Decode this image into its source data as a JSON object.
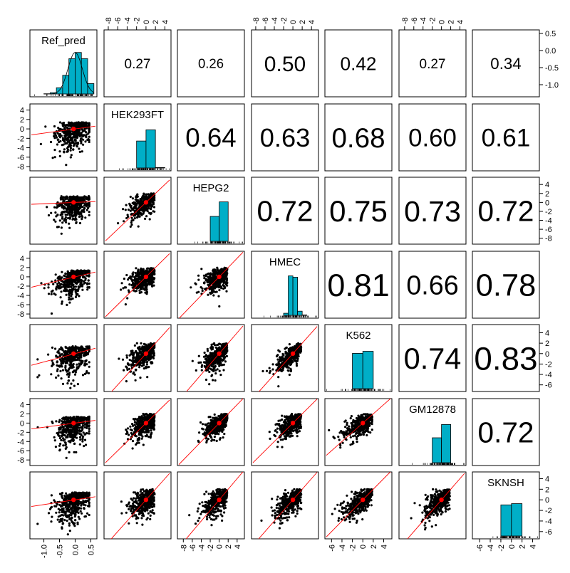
{
  "chart_data": {
    "type": "pairs",
    "variables": [
      "Ref_pred",
      "HEK293FT",
      "HEPG2",
      "HMEC",
      "K562",
      "GM12878",
      "SKNSH"
    ],
    "correlation_matrix": [
      [
        null,
        0.27,
        0.26,
        0.5,
        0.42,
        0.27,
        0.34
      ],
      [
        0.27,
        null,
        0.64,
        0.63,
        0.68,
        0.6,
        0.61
      ],
      [
        0.26,
        0.64,
        null,
        0.72,
        0.75,
        0.73,
        0.72
      ],
      [
        0.5,
        0.63,
        0.72,
        null,
        0.81,
        0.66,
        0.78
      ],
      [
        0.42,
        0.68,
        0.75,
        0.81,
        null,
        0.74,
        0.83
      ],
      [
        0.27,
        0.6,
        0.73,
        0.66,
        0.74,
        null,
        0.72
      ],
      [
        0.34,
        0.61,
        0.72,
        0.78,
        0.83,
        0.72,
        null
      ]
    ],
    "ranges": {
      "Ref_pred": [
        -1.4,
        0.65
      ],
      "HEK293FT": [
        -8.6,
        5.0
      ],
      "HEPG2": [
        -9.0,
        5.3
      ],
      "HMEC": [
        -8.6,
        5.2
      ],
      "K562": [
        -7.0,
        5.3
      ],
      "GM12878": [
        -8.9,
        5.0
      ],
      "SKNSH": [
        -7.1,
        5.0
      ]
    },
    "ticks": {
      "Ref_pred": [
        "-1.0",
        "-0.5",
        "0.0",
        "0.5"
      ],
      "HEK293FT": [
        "-8",
        "-6",
        "-4",
        "-2",
        "0",
        "2",
        "4"
      ],
      "HEPG2": [
        "-8",
        "-6",
        "-4",
        "-2",
        "0",
        "2",
        "4"
      ],
      "HMEC": [
        "-8",
        "-6",
        "-4",
        "-2",
        "0",
        "2",
        "4"
      ],
      "K562": [
        "-6",
        "-4",
        "-2",
        "0",
        "2",
        "4"
      ],
      "GM12878": [
        "-8",
        "-6",
        "-4",
        "-2",
        "0",
        "2",
        "4"
      ],
      "SKNSH": [
        "-6",
        "-4",
        "-2",
        "0",
        "2",
        "4"
      ]
    },
    "means": {
      "Ref_pred": -0.05,
      "HEK293FT": 0.0,
      "HEPG2": 0.0,
      "HMEC": 0.0,
      "K562": 0.0,
      "GM12878": 0.0,
      "SKNSH": 0.0
    },
    "histograms": {
      "Ref_pred": {
        "bins": [
          -1.0,
          -0.8,
          -0.6,
          -0.4,
          -0.2,
          0.0,
          0.2,
          0.4,
          0.6
        ],
        "heights": [
          0.005,
          0.03,
          0.15,
          0.45,
          0.85,
          1.0,
          0.85,
          0.25
        ]
      },
      "HEK293FT": {
        "bins": [
          -2,
          0,
          2,
          4
        ],
        "heights": [
          0.65,
          0.92,
          0.01
        ]
      },
      "HEPG2": {
        "bins": [
          -2,
          0,
          2
        ],
        "heights": [
          0.6,
          0.95
        ]
      },
      "HMEC": {
        "bins": [
          -2,
          -1,
          0,
          1,
          2,
          3
        ],
        "heights": [
          0.05,
          0.95,
          0.92,
          0.1,
          0.01
        ]
      },
      "K562": {
        "bins": [
          -2,
          0,
          2
        ],
        "heights": [
          0.85,
          0.9
        ]
      },
      "GM12878": {
        "bins": [
          -2,
          0,
          2
        ],
        "heights": [
          0.6,
          0.92
        ]
      },
      "SKNSH": {
        "bins": [
          -2,
          0,
          2
        ],
        "heights": [
          0.75,
          0.78
        ]
      }
    },
    "scatter_style": {
      "point_color": "#000000",
      "mean_color": "#ff0000",
      "fit_color": "#ff0000",
      "hist_fill": "#00aec7"
    }
  }
}
